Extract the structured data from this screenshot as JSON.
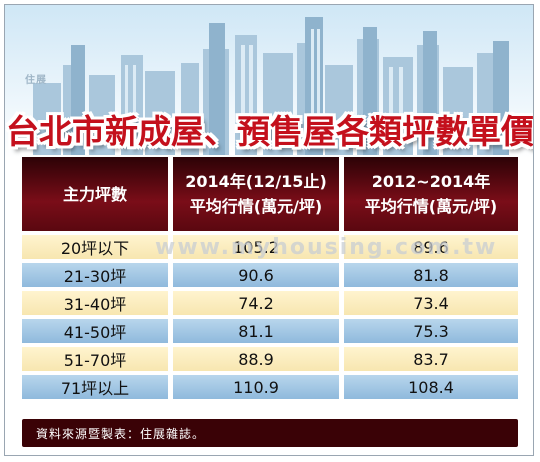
{
  "title": "台北市新成屋、預售屋各類坪數單價統計表",
  "logo_text": "住展",
  "watermark": "www.myhousing.com.tw",
  "source": "資料來源暨製表：住展雜誌。",
  "chart_data": {
    "type": "table",
    "columns": [
      {
        "line1": "主力坪數",
        "line2": ""
      },
      {
        "line1": "2014年(12/15止)",
        "line2": "平均行情(萬元/坪)"
      },
      {
        "line1": "2012~2014年",
        "line2": "平均行情(萬元/坪)"
      }
    ],
    "rows": [
      {
        "size": "20坪以下",
        "v2014": "105.2",
        "v2012_2014": "89.6"
      },
      {
        "size": "21-30坪",
        "v2014": "90.6",
        "v2012_2014": "81.8"
      },
      {
        "size": "31-40坪",
        "v2014": "74.2",
        "v2012_2014": "73.4"
      },
      {
        "size": "41-50坪",
        "v2014": "81.1",
        "v2012_2014": "75.3"
      },
      {
        "size": "51-70坪",
        "v2014": "88.9",
        "v2012_2014": "83.7"
      },
      {
        "size": "71坪以上",
        "v2014": "110.9",
        "v2012_2014": "108.4"
      }
    ]
  },
  "colors": {
    "title": "#c4101c",
    "header_bg": "#5a0810",
    "row_light": "#fff4cf",
    "row_blue": "#a6c8e4",
    "footer_bg": "#3a0206"
  }
}
